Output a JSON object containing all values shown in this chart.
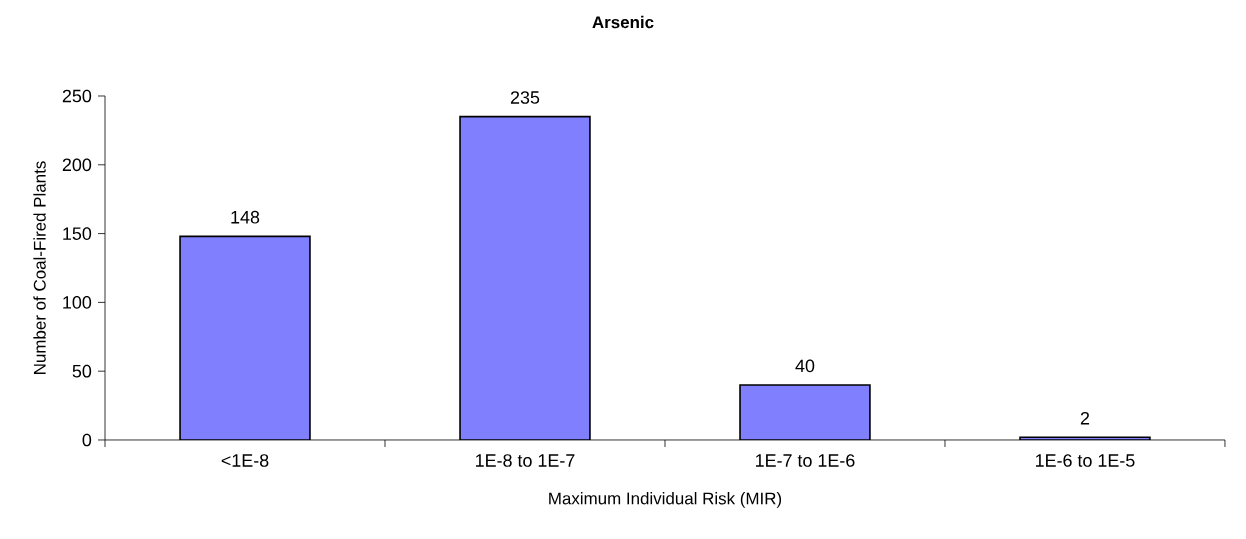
{
  "chart_data": {
    "type": "bar",
    "title": "Arsenic",
    "xlabel": "Maximum Individual Risk (MIR)",
    "ylabel": "Number of Coal-Fired Plants",
    "categories": [
      "<1E-8",
      "1E-8 to 1E-7",
      "1E-7 to 1E-6",
      "1E-6 to 1E-5"
    ],
    "values": [
      148,
      235,
      40,
      2
    ],
    "color": "#8080ff",
    "ylim": [
      0,
      250
    ],
    "yticks": [
      0,
      50,
      100,
      150,
      200,
      250
    ],
    "grid": false,
    "data_labels": true
  }
}
